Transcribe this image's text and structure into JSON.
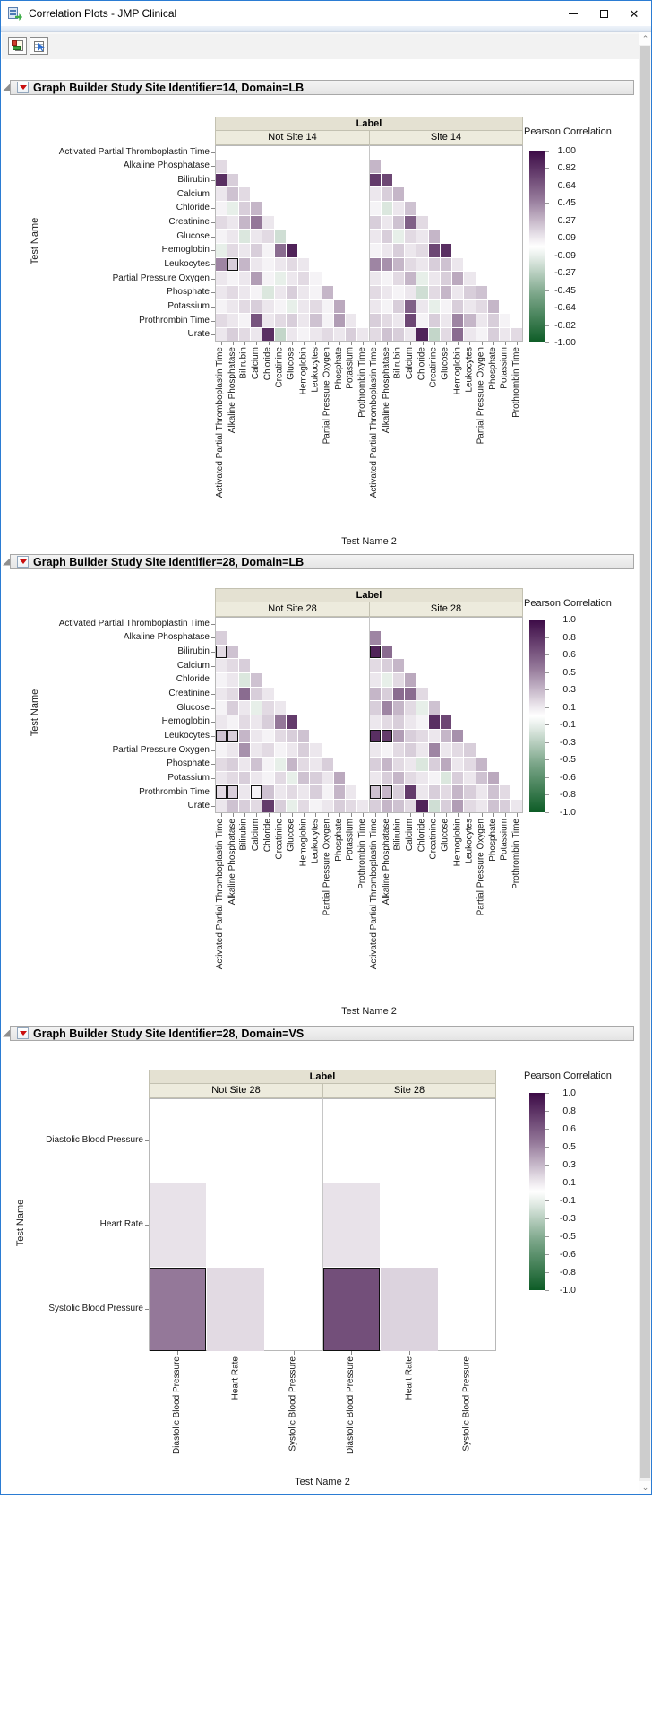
{
  "window": {
    "title": "Correlation Plots - JMP Clinical"
  },
  "toolbar": {
    "buttons": [
      {
        "icon": "save-journal-icon"
      },
      {
        "icon": "table-cursor-icon"
      }
    ]
  },
  "sections": [
    {
      "title": "Graph Builder Study Site Identifier=14, Domain=LB"
    },
    {
      "title": "Graph Builder Study Site Identifier=28, Domain=LB"
    },
    {
      "title": "Graph Builder Study Site Identifier=28, Domain=VS"
    }
  ],
  "chart_data": [
    {
      "type": "heatmap",
      "title": "Graph Builder Study Site Identifier=14, Domain=LB",
      "facet_label": "Label",
      "panels": [
        "Not Site 14",
        "Site 14"
      ],
      "xlabel": "Test Name 2",
      "ylabel": "Test Name",
      "y_categories": [
        "Activated Partial Thromboplastin Time",
        "Alkaline Phosphatase",
        "Bilirubin",
        "Calcium",
        "Chloride",
        "Creatinine",
        "Glucose",
        "Hemoglobin",
        "Leukocytes",
        "Partial Pressure Oxygen",
        "Phosphate",
        "Potassium",
        "Prothrombin Time",
        "Urate"
      ],
      "x_categories": [
        "Activated Partial Thromboplastin Time",
        "Alkaline Phosphatase",
        "Bilirubin",
        "Calcium",
        "Chloride",
        "Creatinine",
        "Glucose",
        "Hemoglobin",
        "Leukocytes",
        "Partial Pressure Oxygen",
        "Phosphate",
        "Potassium",
        "Prothrombin Time"
      ],
      "legend": {
        "title": "Pearson Correlation",
        "ticks": [
          "1.00",
          "0.82",
          "0.64",
          "0.45",
          "0.27",
          "0.09",
          "-0.09",
          "-0.27",
          "-0.45",
          "-0.64",
          "-0.82",
          "-1.00"
        ],
        "range": [
          1,
          -1
        ],
        "positive_color": "#3c0a46",
        "negative_color": "#0d5c26",
        "zero_color": "#ffffff"
      },
      "matrices": [
        [
          [],
          [
            0.15
          ],
          [
            0.85,
            0.2
          ],
          [
            0.1,
            0.25,
            0.15
          ],
          [
            0.05,
            -0.1,
            0.2,
            0.3
          ],
          [
            0.15,
            0.1,
            0.3,
            0.55,
            0.1
          ],
          [
            0.05,
            0.1,
            -0.15,
            0.1,
            0.15,
            -0.2
          ],
          [
            -0.1,
            0.15,
            0.1,
            0.2,
            0.05,
            0.6,
            0.9
          ],
          [
            0.5,
            0.2,
            0.3,
            0.1,
            0.05,
            0.1,
            0.15,
            0.1
          ],
          [
            0.1,
            0.05,
            0.1,
            0.4,
            0.05,
            -0.1,
            0.1,
            0.15,
            0.05
          ],
          [
            0.1,
            0.15,
            0.1,
            0.05,
            -0.15,
            0.1,
            0.2,
            0.1,
            0.05,
            0.3
          ],
          [
            0.05,
            0.1,
            0.15,
            0.2,
            0.1,
            0.05,
            -0.1,
            0.1,
            0.15,
            0.05,
            0.35
          ],
          [
            0.15,
            0.1,
            0.05,
            0.7,
            0.1,
            0.15,
            0.2,
            0.1,
            0.25,
            0.05,
            0.4,
            0.1
          ],
          [
            0.1,
            0.2,
            0.15,
            0.1,
            0.85,
            -0.25,
            0.1,
            0.05,
            0.1,
            0.15,
            0.1,
            0.2,
            0.1
          ]
        ],
        [
          [],
          [
            0.3
          ],
          [
            0.8,
            0.75
          ],
          [
            0.1,
            0.2,
            0.3
          ],
          [
            0.05,
            -0.15,
            0.1,
            0.25
          ],
          [
            0.2,
            0.1,
            0.25,
            0.65,
            0.15
          ],
          [
            0.1,
            0.2,
            -0.1,
            0.15,
            0.1,
            0.3
          ],
          [
            0.05,
            0.1,
            0.2,
            0.1,
            0.15,
            0.75,
            0.85
          ],
          [
            0.5,
            0.45,
            0.3,
            0.15,
            0.1,
            0.2,
            0.25,
            0.1
          ],
          [
            0.1,
            0.05,
            0.15,
            0.3,
            -0.1,
            0.1,
            0.2,
            0.35,
            0.1
          ],
          [
            0.15,
            0.1,
            0.05,
            0.1,
            -0.2,
            0.15,
            0.3,
            0.1,
            0.2,
            0.25
          ],
          [
            0.1,
            0.05,
            0.2,
            0.65,
            0.1,
            -0.1,
            0.05,
            0.2,
            0.1,
            0.15,
            0.3
          ],
          [
            0.2,
            0.15,
            0.1,
            0.75,
            0.05,
            0.2,
            0.1,
            0.5,
            0.3,
            0.1,
            0.2,
            0.05
          ],
          [
            0.15,
            0.25,
            0.2,
            0.1,
            0.9,
            -0.25,
            0.15,
            0.6,
            0.1,
            0.05,
            0.2,
            0.1,
            0.15
          ]
        ]
      ],
      "selected": [
        [
          0,
          8,
          1
        ]
      ]
    },
    {
      "type": "heatmap",
      "title": "Graph Builder Study Site Identifier=28, Domain=LB",
      "facet_label": "Label",
      "panels": [
        "Not Site 28",
        "Site 28"
      ],
      "xlabel": "Test Name 2",
      "ylabel": "Test Name",
      "y_categories": [
        "Activated Partial Thromboplastin Time",
        "Alkaline Phosphatase",
        "Bilirubin",
        "Calcium",
        "Chloride",
        "Creatinine",
        "Glucose",
        "Hemoglobin",
        "Leukocytes",
        "Partial Pressure Oxygen",
        "Phosphate",
        "Potassium",
        "Prothrombin Time",
        "Urate"
      ],
      "x_categories": [
        "Activated Partial Thromboplastin Time",
        "Alkaline Phosphatase",
        "Bilirubin",
        "Calcium",
        "Chloride",
        "Creatinine",
        "Glucose",
        "Hemoglobin",
        "Leukocytes",
        "Partial Pressure Oxygen",
        "Phosphate",
        "Potassium",
        "Prothrombin Time"
      ],
      "legend": {
        "title": "Pearson Correlation",
        "ticks": [
          "1.0",
          "0.8",
          "0.6",
          "0.5",
          "0.3",
          "0.1",
          "-0.1",
          "-0.3",
          "-0.5",
          "-0.6",
          "-0.8",
          "-1.0"
        ],
        "range": [
          1,
          -1
        ],
        "positive_color": "#3c0a46",
        "negative_color": "#0d5c26",
        "zero_color": "#ffffff"
      },
      "matrices": [
        [
          [],
          [
            0.2
          ],
          [
            0.15,
            0.25
          ],
          [
            0.1,
            0.15,
            0.2
          ],
          [
            0.05,
            0.1,
            -0.15,
            0.25
          ],
          [
            0.1,
            0.15,
            0.6,
            0.2,
            0.1
          ],
          [
            0.05,
            0.2,
            0.1,
            -0.1,
            0.15,
            0.1
          ],
          [
            0.1,
            0.05,
            0.15,
            0.1,
            0.2,
            0.55,
            0.8
          ],
          [
            0.25,
            0.2,
            0.3,
            0.1,
            0.05,
            0.15,
            0.2,
            0.25
          ],
          [
            0.05,
            0.1,
            0.45,
            0.1,
            0.15,
            0.05,
            0.1,
            0.2,
            0.1
          ],
          [
            0.15,
            0.2,
            0.1,
            0.25,
            0.05,
            -0.1,
            0.3,
            0.15,
            0.1,
            0.2
          ],
          [
            0.1,
            0.15,
            0.2,
            0.1,
            0.05,
            0.15,
            -0.1,
            0.25,
            0.2,
            0.1,
            0.35
          ],
          [
            0.15,
            0.2,
            0.1,
            0.05,
            0.25,
            0.1,
            0.15,
            0.1,
            0.2,
            0.05,
            0.3,
            0.1
          ],
          [
            0.1,
            0.25,
            0.2,
            0.15,
            0.8,
            0.2,
            -0.1,
            0.15,
            0.05,
            0.1,
            0.2,
            0.15,
            0.1
          ]
        ],
        [
          [],
          [
            0.5
          ],
          [
            0.9,
            0.6
          ],
          [
            0.15,
            0.2,
            0.3
          ],
          [
            0.1,
            -0.1,
            0.15,
            0.35
          ],
          [
            0.3,
            0.2,
            0.6,
            0.6,
            0.15
          ],
          [
            0.2,
            0.5,
            0.3,
            0.15,
            -0.1,
            0.25
          ],
          [
            0.1,
            0.15,
            0.2,
            0.1,
            0.05,
            0.85,
            0.75
          ],
          [
            0.85,
            0.8,
            0.4,
            0.2,
            0.15,
            0.1,
            0.3,
            0.45
          ],
          [
            0.1,
            0.05,
            0.15,
            0.2,
            0.1,
            0.5,
            0.1,
            0.15,
            0.2
          ],
          [
            0.2,
            0.3,
            0.15,
            0.1,
            -0.15,
            0.2,
            0.35,
            0.1,
            0.15,
            0.3
          ],
          [
            0.1,
            0.2,
            0.3,
            0.15,
            0.1,
            0.05,
            -0.15,
            0.2,
            0.1,
            0.25,
            0.35
          ],
          [
            0.25,
            0.3,
            0.2,
            0.8,
            0.1,
            0.2,
            0.15,
            0.3,
            0.2,
            0.1,
            0.25,
            0.15
          ],
          [
            0.2,
            0.3,
            0.25,
            0.15,
            0.9,
            -0.2,
            0.2,
            0.4,
            0.15,
            0.1,
            0.25,
            0.2,
            0.1
          ]
        ]
      ],
      "selected": [
        [
          0,
          2,
          0
        ],
        [
          0,
          8,
          0
        ],
        [
          0,
          8,
          1
        ],
        [
          0,
          12,
          0
        ],
        [
          0,
          12,
          1
        ],
        [
          0,
          12,
          3
        ],
        [
          1,
          2,
          0
        ],
        [
          1,
          8,
          0
        ],
        [
          1,
          8,
          1
        ],
        [
          1,
          12,
          0
        ],
        [
          1,
          12,
          1
        ]
      ]
    },
    {
      "type": "heatmap",
      "title": "Graph Builder Study Site Identifier=28, Domain=VS",
      "facet_label": "Label",
      "panels": [
        "Not Site 28",
        "Site 28"
      ],
      "xlabel": "Test Name 2",
      "ylabel": "Test Name",
      "y_categories": [
        "Diastolic Blood Pressure",
        "Heart Rate",
        "Systolic Blood Pressure"
      ],
      "x_categories": [
        "Diastolic Blood Pressure",
        "Heart Rate",
        "Systolic Blood Pressure"
      ],
      "legend": {
        "title": "Pearson Correlation",
        "ticks": [
          "1.0",
          "0.8",
          "0.6",
          "0.5",
          "0.3",
          "0.1",
          "-0.1",
          "-0.3",
          "-0.5",
          "-0.6",
          "-0.8",
          "-1.0"
        ],
        "range": [
          1,
          -1
        ],
        "positive_color": "#3c0a46",
        "negative_color": "#0d5c26",
        "zero_color": "#ffffff"
      },
      "matrices": [
        [
          [],
          [
            0.12
          ],
          [
            0.55,
            0.15
          ]
        ],
        [
          [],
          [
            0.12
          ],
          [
            0.72,
            0.18
          ]
        ]
      ],
      "selected": [
        [
          0,
          2,
          0
        ],
        [
          1,
          2,
          0
        ]
      ]
    }
  ]
}
